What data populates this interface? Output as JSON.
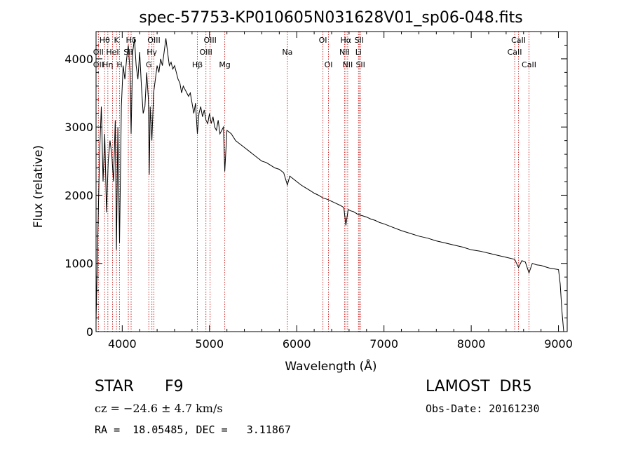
{
  "chart_data": {
    "type": "line",
    "title": "spec-57753-KP010605N031628V01_sp06-048.fits",
    "xlabel": "Wavelength (Å)",
    "ylabel": "Flux (relative)",
    "xlim": [
      3700,
      9100
    ],
    "ylim": [
      0,
      4400
    ],
    "xticks": [
      4000,
      5000,
      6000,
      7000,
      8000,
      9000
    ],
    "yticks": [
      0,
      1000,
      2000,
      3000,
      4000
    ],
    "grid": false,
    "line_color": "#000000",
    "marker_color": "#cc3333",
    "series": [
      {
        "x": [
          3700,
          3720,
          3740,
          3760,
          3780,
          3800,
          3820,
          3840,
          3860,
          3880,
          3900,
          3920,
          3934,
          3950,
          3969,
          3990,
          4010,
          4030,
          4050,
          4070,
          4090,
          4102,
          4120,
          4140,
          4160,
          4180,
          4200,
          4220,
          4240,
          4260,
          4280,
          4300,
          4310,
          4320,
          4340,
          4360,
          4380,
          4400,
          4420,
          4440,
          4460,
          4480,
          4500,
          4520,
          4540,
          4560,
          4580,
          4600,
          4620,
          4640,
          4660,
          4680,
          4700,
          4720,
          4740,
          4760,
          4780,
          4800,
          4820,
          4840,
          4861,
          4880,
          4900,
          4920,
          4940,
          4960,
          4980,
          5000,
          5020,
          5040,
          5060,
          5080,
          5100,
          5120,
          5140,
          5160,
          5175,
          5200,
          5250,
          5300,
          5350,
          5400,
          5450,
          5500,
          5550,
          5600,
          5650,
          5700,
          5750,
          5800,
          5850,
          5893,
          5920,
          5950,
          6000,
          6050,
          6100,
          6150,
          6200,
          6250,
          6300,
          6350,
          6400,
          6450,
          6500,
          6540,
          6563,
          6590,
          6620,
          6650,
          6700,
          6750,
          6800,
          6850,
          6900,
          6950,
          7000,
          7100,
          7200,
          7300,
          7400,
          7500,
          7600,
          7700,
          7800,
          7900,
          8000,
          8100,
          8200,
          8300,
          8400,
          8498,
          8520,
          8542,
          8580,
          8620,
          8662,
          8700,
          8750,
          8800,
          8850,
          8900,
          8950,
          9000,
          9020,
          9040,
          9060
        ],
        "y": [
          150,
          1400,
          2600,
          3300,
          2200,
          2900,
          1750,
          2500,
          2800,
          2600,
          2200,
          3100,
          1200,
          3000,
          1300,
          3300,
          3900,
          3700,
          4000,
          4200,
          3800,
          2900,
          4100,
          4300,
          3900,
          3700,
          4100,
          3600,
          3200,
          3300,
          3800,
          3400,
          2300,
          3300,
          2800,
          3500,
          3700,
          3900,
          3800,
          4000,
          3900,
          4100,
          4300,
          4100,
          3900,
          3950,
          3850,
          3900,
          3800,
          3700,
          3650,
          3500,
          3600,
          3550,
          3500,
          3450,
          3500,
          3350,
          3200,
          3350,
          2900,
          3200,
          3300,
          3150,
          3250,
          3100,
          3050,
          3200,
          3050,
          3150,
          3000,
          2950,
          3100,
          2900,
          2950,
          3000,
          2350,
          2950,
          2900,
          2800,
          2750,
          2700,
          2650,
          2600,
          2550,
          2500,
          2480,
          2440,
          2400,
          2380,
          2330,
          2150,
          2280,
          2250,
          2200,
          2150,
          2110,
          2070,
          2030,
          2000,
          1960,
          1940,
          1910,
          1880,
          1850,
          1820,
          1560,
          1790,
          1770,
          1760,
          1720,
          1700,
          1680,
          1650,
          1630,
          1600,
          1580,
          1530,
          1480,
          1440,
          1400,
          1370,
          1330,
          1300,
          1270,
          1240,
          1200,
          1180,
          1150,
          1120,
          1090,
          1060,
          1000,
          940,
          1040,
          1020,
          860,
          1000,
          980,
          970,
          950,
          930,
          920,
          910,
          700,
          300,
          0
        ]
      }
    ],
    "lines": [
      {
        "label": "Hθ",
        "x": 3798,
        "row": 0
      },
      {
        "label": "OII",
        "x": 3727,
        "row": 1
      },
      {
        "label": "OII",
        "x": 3727,
        "row": 2
      },
      {
        "label": "Hη",
        "x": 3835,
        "row": 2
      },
      {
        "label": "HeI",
        "x": 3889,
        "row": 1
      },
      {
        "label": "K",
        "x": 3934,
        "row": 0
      },
      {
        "label": "H",
        "x": 3969,
        "row": 2
      },
      {
        "label": "SII",
        "x": 4070,
        "row": 1
      },
      {
        "label": "Hδ",
        "x": 4102,
        "row": 0
      },
      {
        "label": "OIII",
        "x": 4363,
        "row": 0
      },
      {
        "label": "Hγ",
        "x": 4340,
        "row": 1
      },
      {
        "label": "G",
        "x": 4305,
        "row": 2
      },
      {
        "label": "Hβ",
        "x": 4861,
        "row": 2
      },
      {
        "label": "OIII",
        "x": 4959,
        "row": 1
      },
      {
        "label": "OIII",
        "x": 5007,
        "row": 0
      },
      {
        "label": "Mg",
        "x": 5175,
        "row": 2
      },
      {
        "label": "Na",
        "x": 5893,
        "row": 1
      },
      {
        "label": "OI",
        "x": 6300,
        "row": 0
      },
      {
        "label": "OI",
        "x": 6364,
        "row": 2
      },
      {
        "label": "Hα",
        "x": 6563,
        "row": 0
      },
      {
        "label": "NII",
        "x": 6548,
        "row": 1
      },
      {
        "label": "NII",
        "x": 6584,
        "row": 2
      },
      {
        "label": "Li",
        "x": 6708,
        "row": 1
      },
      {
        "label": "SII",
        "x": 6716,
        "row": 0
      },
      {
        "label": "SII",
        "x": 6731,
        "row": 2
      },
      {
        "label": "CaII",
        "x": 8542,
        "row": 0
      },
      {
        "label": "CaII",
        "x": 8498,
        "row": 1
      },
      {
        "label": "CaII",
        "x": 8662,
        "row": 2
      }
    ]
  },
  "info": {
    "class_label": "STAR",
    "subclass": "F9",
    "survey": "LAMOST  DR5",
    "cz_text": "cz = −24.6 ± 4.7 km/s",
    "obs_date": "Obs-Date: 20161230",
    "coords": "RA =  18.05485, DEC =   3.11867"
  }
}
